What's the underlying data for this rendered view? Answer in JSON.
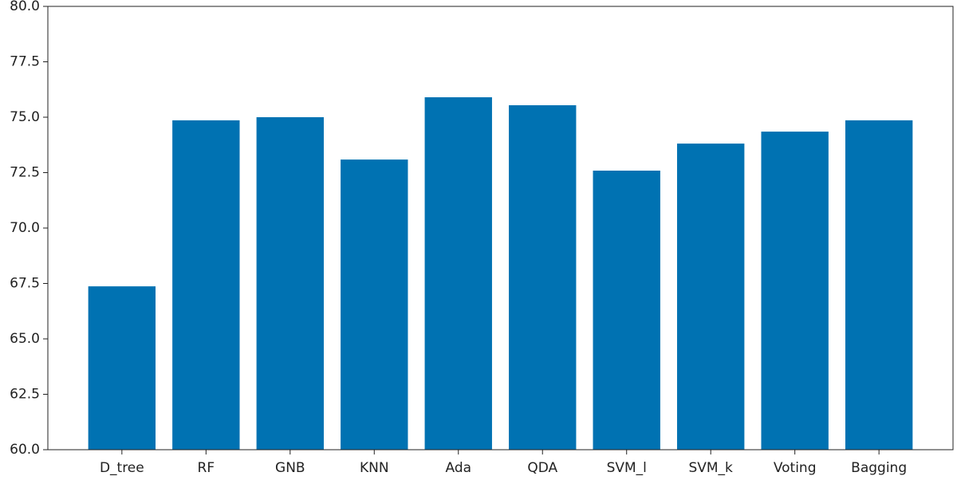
{
  "chart_data": {
    "type": "bar",
    "categories": [
      "D_tree",
      "RF",
      "GNB",
      "KNN",
      "Ada",
      "QDA",
      "SVM_l",
      "SVM_k",
      "Voting",
      "Bagging"
    ],
    "values": [
      67.37,
      74.86,
      75.0,
      73.09,
      75.9,
      75.54,
      72.59,
      73.81,
      74.35,
      74.86
    ],
    "color": "#0072b2",
    "ylim": [
      60,
      80
    ],
    "yticks": [
      {
        "value": 60,
        "label": "60.0"
      },
      62.5,
      {
        "value": 65,
        "label": "65.0"
      },
      67.5,
      {
        "value": 70,
        "label": "70.0"
      },
      72.5,
      {
        "value": 75,
        "label": "75.0"
      },
      77.5,
      {
        "value": 80,
        "label": "80.0"
      }
    ],
    "grid": false
  }
}
